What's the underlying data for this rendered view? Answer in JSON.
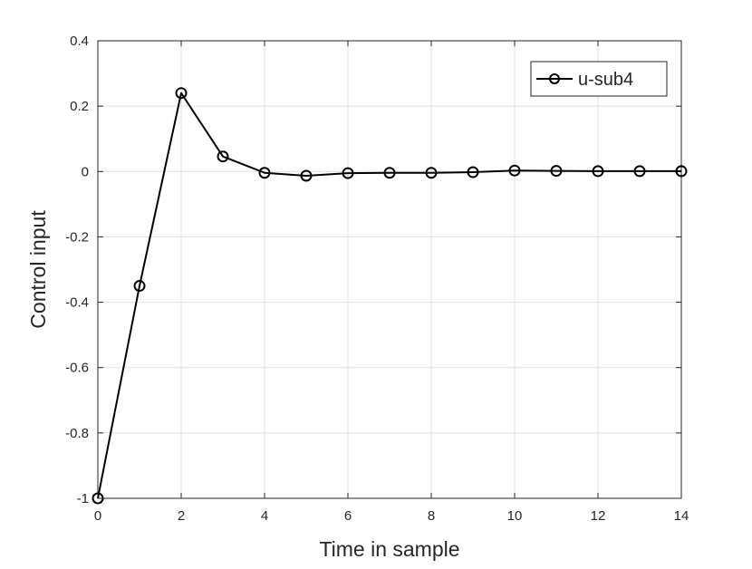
{
  "chart_data": {
    "type": "line",
    "title": "",
    "xlabel": "Time in sample",
    "ylabel": "Control input",
    "xlim": [
      0,
      14
    ],
    "ylim": [
      -1,
      0.4
    ],
    "xticks": [
      0,
      2,
      4,
      6,
      8,
      10,
      12,
      14
    ],
    "yticks": [
      -1,
      -0.8,
      -0.6,
      -0.4,
      -0.2,
      0,
      0.2,
      0.4
    ],
    "xtick_labels": [
      "0",
      "2",
      "4",
      "6",
      "8",
      "10",
      "12",
      "14"
    ],
    "ytick_labels": [
      "-1",
      "-0.8",
      "-0.6",
      "-0.4",
      "-0.2",
      "0",
      "0.2",
      "0.4"
    ],
    "grid": true,
    "legend_position": "top-right",
    "series": [
      {
        "name": "u-sub4",
        "marker": "circle",
        "color": "#000000",
        "x": [
          0,
          1,
          2,
          3,
          4,
          5,
          6,
          7,
          8,
          9,
          10,
          11,
          12,
          13,
          14
        ],
        "y": [
          -1.0,
          -0.35,
          0.24,
          0.046,
          -0.004,
          -0.013,
          -0.005,
          -0.004,
          -0.004,
          -0.002,
          0.003,
          0.002,
          0.001,
          0.001,
          0.001
        ]
      }
    ]
  }
}
